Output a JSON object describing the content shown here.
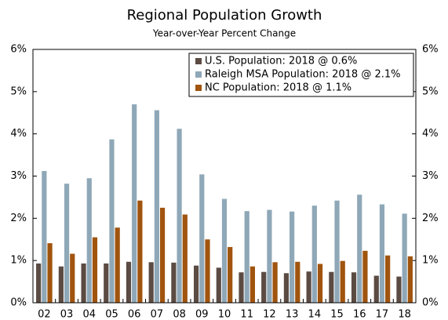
{
  "chart_data": {
    "type": "bar",
    "title": "Regional Population Growth",
    "subtitle": "Year-over-Year Percent Change",
    "categories": [
      "02",
      "03",
      "04",
      "05",
      "06",
      "07",
      "08",
      "09",
      "10",
      "11",
      "12",
      "13",
      "14",
      "15",
      "16",
      "17",
      "18"
    ],
    "series": [
      {
        "name": "U.S. Population: 2018 @ 0.6%",
        "color": "#5b4b43",
        "values": [
          0.93,
          0.86,
          0.93,
          0.93,
          0.97,
          0.96,
          0.95,
          0.88,
          0.83,
          0.72,
          0.73,
          0.7,
          0.74,
          0.73,
          0.72,
          0.64,
          0.62
        ]
      },
      {
        "name": "Raleigh MSA Population: 2018 @ 2.1%",
        "color": "#8fa8b8",
        "values": [
          3.12,
          2.82,
          2.95,
          3.87,
          4.7,
          4.56,
          4.12,
          3.04,
          2.46,
          2.17,
          2.2,
          2.16,
          2.3,
          2.42,
          2.56,
          2.33,
          2.11
        ]
      },
      {
        "name": "NC Population: 2018 @ 1.1%",
        "color": "#a0540e",
        "values": [
          1.41,
          1.16,
          1.55,
          1.78,
          2.42,
          2.25,
          2.09,
          1.5,
          1.32,
          0.86,
          0.96,
          0.97,
          0.92,
          0.99,
          1.23,
          1.12,
          1.1
        ]
      }
    ],
    "ylim": [
      0,
      6
    ],
    "yticks": [
      {
        "value": 0,
        "label": "0%"
      },
      {
        "value": 1,
        "label": "1%"
      },
      {
        "value": 2,
        "label": "2%"
      },
      {
        "value": 3,
        "label": "3%"
      },
      {
        "value": 4,
        "label": "4%"
      },
      {
        "value": 5,
        "label": "5%"
      },
      {
        "value": 6,
        "label": "6%"
      }
    ],
    "y2lim": [
      0,
      6
    ],
    "y2ticks": [
      {
        "value": 0,
        "label": "0%"
      },
      {
        "value": 1,
        "label": "1%"
      },
      {
        "value": 2,
        "label": "2%"
      },
      {
        "value": 3,
        "label": "3%"
      },
      {
        "value": 4,
        "label": "4%"
      },
      {
        "value": 5,
        "label": "5%"
      },
      {
        "value": 6,
        "label": "6%"
      }
    ],
    "legend": "top-right",
    "grid": false
  }
}
